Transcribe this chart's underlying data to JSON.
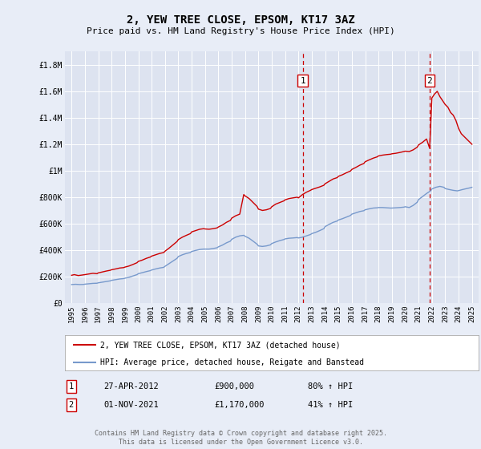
{
  "title": "2, YEW TREE CLOSE, EPSOM, KT17 3AZ",
  "subtitle": "Price paid vs. HM Land Registry's House Price Index (HPI)",
  "xlim": [
    1994.5,
    2025.5
  ],
  "ylim": [
    0,
    1900000
  ],
  "yticks": [
    0,
    200000,
    400000,
    600000,
    800000,
    1000000,
    1200000,
    1400000,
    1600000,
    1800000
  ],
  "ytick_labels": [
    "£0",
    "£200K",
    "£400K",
    "£600K",
    "£800K",
    "£1M",
    "£1.2M",
    "£1.4M",
    "£1.6M",
    "£1.8M"
  ],
  "xticks": [
    1995,
    1996,
    1997,
    1998,
    1999,
    2000,
    2001,
    2002,
    2003,
    2004,
    2005,
    2006,
    2007,
    2008,
    2009,
    2010,
    2011,
    2012,
    2013,
    2014,
    2015,
    2016,
    2017,
    2018,
    2019,
    2020,
    2021,
    2022,
    2023,
    2024,
    2025
  ],
  "background_color": "#e8edf7",
  "plot_bg_color": "#dde3f0",
  "grid_color": "#ffffff",
  "red_line_color": "#cc0000",
  "blue_line_color": "#7799cc",
  "purchase1_x": 2012.32,
  "purchase1_label": "1",
  "purchase2_x": 2021.83,
  "purchase2_label": "2",
  "vline_color": "#cc0000",
  "legend_label_red": "2, YEW TREE CLOSE, EPSOM, KT17 3AZ (detached house)",
  "legend_label_blue": "HPI: Average price, detached house, Reigate and Banstead",
  "annotation1_date": "27-APR-2012",
  "annotation1_price": "£900,000",
  "annotation1_hpi": "80% ↑ HPI",
  "annotation2_date": "01-NOV-2021",
  "annotation2_price": "£1,170,000",
  "annotation2_hpi": "41% ↑ HPI",
  "footer": "Contains HM Land Registry data © Crown copyright and database right 2025.\nThis data is licensed under the Open Government Licence v3.0.",
  "red_hpi_data": [
    [
      1995.0,
      210000
    ],
    [
      1995.2,
      215000
    ],
    [
      1995.5,
      208000
    ],
    [
      1995.8,
      212000
    ],
    [
      1996.0,
      215000
    ],
    [
      1996.3,
      220000
    ],
    [
      1996.6,
      225000
    ],
    [
      1996.9,
      222000
    ],
    [
      1997.0,
      228000
    ],
    [
      1997.3,
      235000
    ],
    [
      1997.6,
      242000
    ],
    [
      1997.9,
      248000
    ],
    [
      1998.0,
      252000
    ],
    [
      1998.3,
      258000
    ],
    [
      1998.6,
      265000
    ],
    [
      1998.9,
      268000
    ],
    [
      1999.0,
      272000
    ],
    [
      1999.3,
      280000
    ],
    [
      1999.6,
      292000
    ],
    [
      1999.9,
      305000
    ],
    [
      2000.0,
      315000
    ],
    [
      2000.3,
      325000
    ],
    [
      2000.6,
      338000
    ],
    [
      2000.9,
      348000
    ],
    [
      2001.0,
      355000
    ],
    [
      2001.3,
      365000
    ],
    [
      2001.6,
      375000
    ],
    [
      2001.9,
      382000
    ],
    [
      2002.0,
      392000
    ],
    [
      2002.3,
      415000
    ],
    [
      2002.6,
      440000
    ],
    [
      2002.9,
      465000
    ],
    [
      2003.0,
      480000
    ],
    [
      2003.3,
      498000
    ],
    [
      2003.6,
      512000
    ],
    [
      2003.9,
      525000
    ],
    [
      2004.0,
      538000
    ],
    [
      2004.3,
      548000
    ],
    [
      2004.6,
      558000
    ],
    [
      2004.9,
      562000
    ],
    [
      2005.0,
      560000
    ],
    [
      2005.3,
      558000
    ],
    [
      2005.6,
      562000
    ],
    [
      2005.9,
      568000
    ],
    [
      2006.0,
      575000
    ],
    [
      2006.3,
      590000
    ],
    [
      2006.6,
      610000
    ],
    [
      2006.9,
      625000
    ],
    [
      2007.0,
      642000
    ],
    [
      2007.3,
      660000
    ],
    [
      2007.6,
      672000
    ],
    [
      2007.9,
      820000
    ],
    [
      2008.0,
      810000
    ],
    [
      2008.3,
      790000
    ],
    [
      2008.6,
      760000
    ],
    [
      2008.9,
      730000
    ],
    [
      2009.0,
      710000
    ],
    [
      2009.3,
      700000
    ],
    [
      2009.6,
      705000
    ],
    [
      2009.9,
      715000
    ],
    [
      2010.0,
      728000
    ],
    [
      2010.3,
      748000
    ],
    [
      2010.6,
      760000
    ],
    [
      2010.9,
      772000
    ],
    [
      2011.0,
      780000
    ],
    [
      2011.3,
      790000
    ],
    [
      2011.6,
      795000
    ],
    [
      2011.9,
      800000
    ],
    [
      2012.0,
      795000
    ],
    [
      2012.3,
      820000
    ],
    [
      2012.6,
      838000
    ],
    [
      2012.9,
      852000
    ],
    [
      2013.0,
      858000
    ],
    [
      2013.3,
      868000
    ],
    [
      2013.6,
      878000
    ],
    [
      2013.9,
      890000
    ],
    [
      2014.0,
      902000
    ],
    [
      2014.3,
      920000
    ],
    [
      2014.6,
      938000
    ],
    [
      2014.9,
      948000
    ],
    [
      2015.0,
      958000
    ],
    [
      2015.3,
      970000
    ],
    [
      2015.6,
      985000
    ],
    [
      2015.9,
      998000
    ],
    [
      2016.0,
      1010000
    ],
    [
      2016.3,
      1025000
    ],
    [
      2016.6,
      1042000
    ],
    [
      2016.9,
      1055000
    ],
    [
      2017.0,
      1068000
    ],
    [
      2017.3,
      1082000
    ],
    [
      2017.6,
      1095000
    ],
    [
      2017.9,
      1105000
    ],
    [
      2018.0,
      1112000
    ],
    [
      2018.3,
      1118000
    ],
    [
      2018.6,
      1122000
    ],
    [
      2018.9,
      1125000
    ],
    [
      2019.0,
      1128000
    ],
    [
      2019.3,
      1132000
    ],
    [
      2019.6,
      1138000
    ],
    [
      2019.9,
      1145000
    ],
    [
      2020.0,
      1148000
    ],
    [
      2020.3,
      1145000
    ],
    [
      2020.6,
      1158000
    ],
    [
      2020.9,
      1178000
    ],
    [
      2021.0,
      1195000
    ],
    [
      2021.3,
      1215000
    ],
    [
      2021.6,
      1240000
    ],
    [
      2021.83,
      1170000
    ],
    [
      2022.0,
      1550000
    ],
    [
      2022.2,
      1580000
    ],
    [
      2022.4,
      1600000
    ],
    [
      2022.6,
      1560000
    ],
    [
      2022.8,
      1530000
    ],
    [
      2023.0,
      1500000
    ],
    [
      2023.2,
      1480000
    ],
    [
      2023.4,
      1440000
    ],
    [
      2023.6,
      1420000
    ],
    [
      2023.8,
      1380000
    ],
    [
      2024.0,
      1320000
    ],
    [
      2024.2,
      1280000
    ],
    [
      2024.4,
      1260000
    ],
    [
      2024.6,
      1240000
    ],
    [
      2024.8,
      1220000
    ],
    [
      2025.0,
      1200000
    ]
  ],
  "blue_hpi_data": [
    [
      1995.0,
      140000
    ],
    [
      1995.3,
      142000
    ],
    [
      1995.6,
      140000
    ],
    [
      1995.9,
      141000
    ],
    [
      1996.0,
      143000
    ],
    [
      1996.3,
      146000
    ],
    [
      1996.6,
      149000
    ],
    [
      1996.9,
      150000
    ],
    [
      1997.0,
      153000
    ],
    [
      1997.3,
      158000
    ],
    [
      1997.6,
      163000
    ],
    [
      1997.9,
      168000
    ],
    [
      1998.0,
      172000
    ],
    [
      1998.3,
      177000
    ],
    [
      1998.6,
      182000
    ],
    [
      1998.9,
      185000
    ],
    [
      1999.0,
      188000
    ],
    [
      1999.3,
      195000
    ],
    [
      1999.6,
      205000
    ],
    [
      1999.9,
      215000
    ],
    [
      2000.0,
      222000
    ],
    [
      2000.3,
      230000
    ],
    [
      2000.6,
      238000
    ],
    [
      2000.9,
      245000
    ],
    [
      2001.0,
      250000
    ],
    [
      2001.3,
      258000
    ],
    [
      2001.6,
      265000
    ],
    [
      2001.9,
      270000
    ],
    [
      2002.0,
      278000
    ],
    [
      2002.3,
      298000
    ],
    [
      2002.6,
      318000
    ],
    [
      2002.9,
      338000
    ],
    [
      2003.0,
      352000
    ],
    [
      2003.3,
      365000
    ],
    [
      2003.6,
      375000
    ],
    [
      2003.9,
      382000
    ],
    [
      2004.0,
      390000
    ],
    [
      2004.3,
      398000
    ],
    [
      2004.6,
      405000
    ],
    [
      2004.9,
      408000
    ],
    [
      2005.0,
      408000
    ],
    [
      2005.3,
      408000
    ],
    [
      2005.6,
      412000
    ],
    [
      2005.9,
      418000
    ],
    [
      2006.0,
      425000
    ],
    [
      2006.3,
      438000
    ],
    [
      2006.6,
      455000
    ],
    [
      2006.9,
      468000
    ],
    [
      2007.0,
      482000
    ],
    [
      2007.3,
      498000
    ],
    [
      2007.6,
      508000
    ],
    [
      2007.9,
      512000
    ],
    [
      2008.0,
      505000
    ],
    [
      2008.3,
      490000
    ],
    [
      2008.6,
      468000
    ],
    [
      2008.9,
      445000
    ],
    [
      2009.0,
      432000
    ],
    [
      2009.3,
      428000
    ],
    [
      2009.6,
      432000
    ],
    [
      2009.9,
      440000
    ],
    [
      2010.0,
      450000
    ],
    [
      2010.3,
      462000
    ],
    [
      2010.6,
      472000
    ],
    [
      2010.9,
      480000
    ],
    [
      2011.0,
      485000
    ],
    [
      2011.3,
      490000
    ],
    [
      2011.6,
      492000
    ],
    [
      2011.9,
      495000
    ],
    [
      2012.0,
      492000
    ],
    [
      2012.3,
      498000
    ],
    [
      2012.6,
      508000
    ],
    [
      2012.9,
      518000
    ],
    [
      2013.0,
      525000
    ],
    [
      2013.3,
      535000
    ],
    [
      2013.6,
      548000
    ],
    [
      2013.9,
      562000
    ],
    [
      2014.0,
      578000
    ],
    [
      2014.3,
      595000
    ],
    [
      2014.6,
      610000
    ],
    [
      2014.9,
      620000
    ],
    [
      2015.0,
      628000
    ],
    [
      2015.3,
      638000
    ],
    [
      2015.6,
      650000
    ],
    [
      2015.9,
      662000
    ],
    [
      2016.0,
      672000
    ],
    [
      2016.3,
      682000
    ],
    [
      2016.6,
      692000
    ],
    [
      2016.9,
      698000
    ],
    [
      2017.0,
      705000
    ],
    [
      2017.3,
      712000
    ],
    [
      2017.6,
      718000
    ],
    [
      2017.9,
      720000
    ],
    [
      2018.0,
      722000
    ],
    [
      2018.3,
      722000
    ],
    [
      2018.6,
      720000
    ],
    [
      2018.9,
      718000
    ],
    [
      2019.0,
      718000
    ],
    [
      2019.3,
      720000
    ],
    [
      2019.6,
      722000
    ],
    [
      2019.9,
      725000
    ],
    [
      2020.0,
      728000
    ],
    [
      2020.3,
      722000
    ],
    [
      2020.6,
      738000
    ],
    [
      2020.9,
      762000
    ],
    [
      2021.0,
      782000
    ],
    [
      2021.3,
      805000
    ],
    [
      2021.6,
      828000
    ],
    [
      2021.9,
      848000
    ],
    [
      2022.0,
      862000
    ],
    [
      2022.3,
      875000
    ],
    [
      2022.6,
      882000
    ],
    [
      2022.9,
      875000
    ],
    [
      2023.0,
      865000
    ],
    [
      2023.3,
      858000
    ],
    [
      2023.6,
      852000
    ],
    [
      2023.9,
      848000
    ],
    [
      2024.0,
      850000
    ],
    [
      2024.3,
      858000
    ],
    [
      2024.6,
      865000
    ],
    [
      2024.9,
      872000
    ],
    [
      2025.0,
      875000
    ]
  ]
}
